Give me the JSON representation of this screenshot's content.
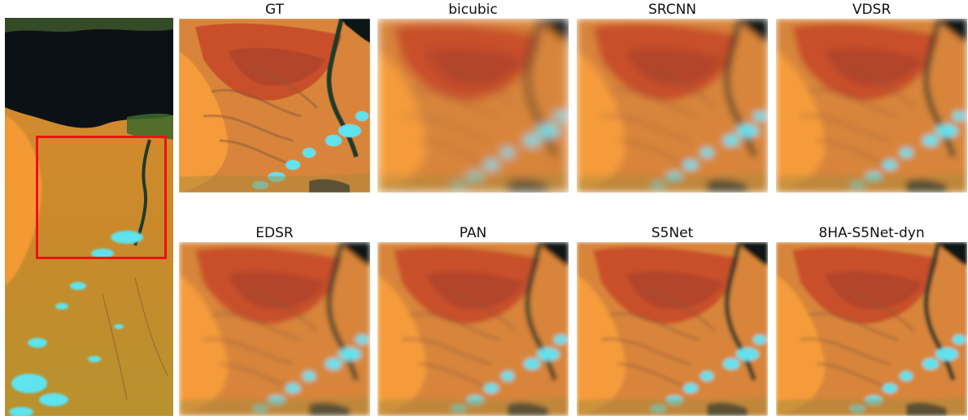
{
  "figure": {
    "panels": [
      {
        "label": "GT",
        "blur": 0
      },
      {
        "label": "bicubic",
        "blur": 6
      },
      {
        "label": "SRCNN",
        "blur": 4.5
      },
      {
        "label": "VDSR",
        "blur": 4
      },
      {
        "label": "EDSR",
        "blur": 3.2
      },
      {
        "label": "PAN",
        "blur": 3
      },
      {
        "label": "S5Net",
        "blur": 2.4
      },
      {
        "label": "8HA-S5Net-dyn",
        "blur": 2.2
      }
    ]
  },
  "colors": {
    "desert": "#f28a2a",
    "desert_red": "#c8502a",
    "river": "#1f3a2a",
    "cloud": "#5fe3ee",
    "sea": "#0c1116",
    "vegetation": "#3c6a2a",
    "roi_box": "#ee1111"
  }
}
